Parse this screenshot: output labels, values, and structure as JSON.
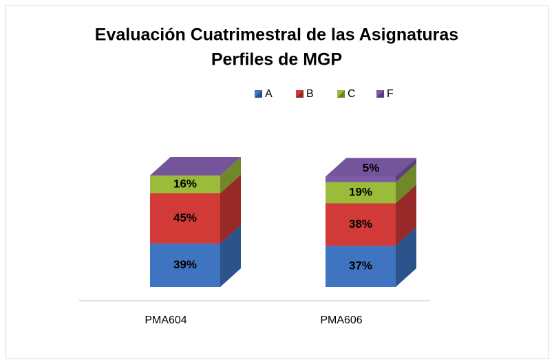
{
  "chart_data": {
    "type": "bar3d_stacked",
    "title": [
      "Evaluación Cuatrimestral de las Asignaturas",
      "Perfiles de MGP"
    ],
    "categories": [
      "PMA604",
      "PMA606"
    ],
    "series": [
      {
        "name": "A",
        "color": "#3f74c0",
        "values": [
          39,
          37
        ],
        "value_labels": [
          "39%",
          "37%"
        ]
      },
      {
        "name": "B",
        "color": "#d23a37",
        "values": [
          45,
          38
        ],
        "value_labels": [
          "45%",
          "38%"
        ]
      },
      {
        "name": "C",
        "color": "#9bbb3b",
        "values": [
          16,
          19
        ],
        "value_labels": [
          "16%",
          "19%"
        ]
      },
      {
        "name": "F",
        "color": "#7e5ba8",
        "values": [
          0,
          5
        ],
        "value_labels": [
          null,
          "5%"
        ]
      }
    ],
    "legend": "top"
  }
}
